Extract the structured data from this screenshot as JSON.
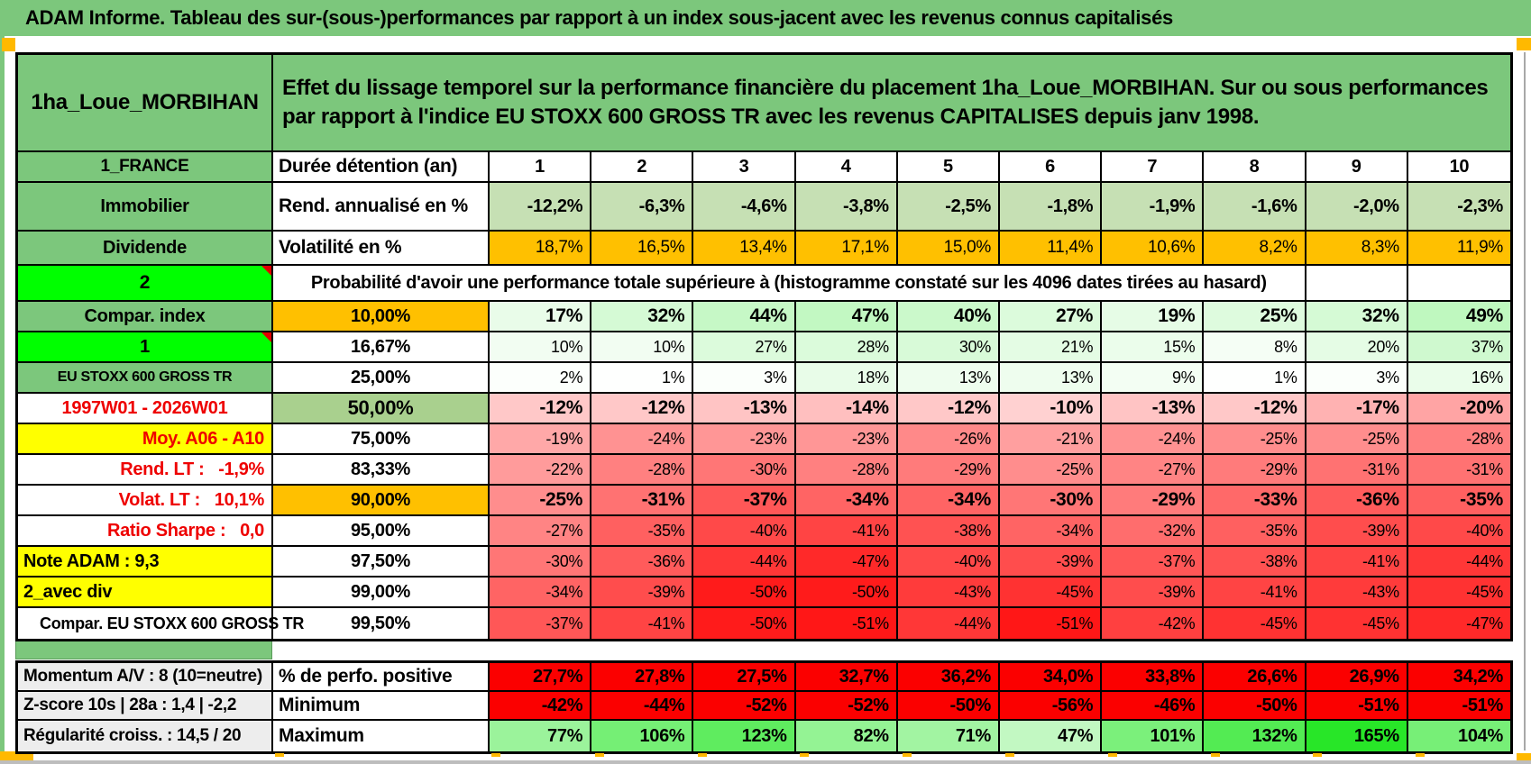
{
  "title": "ADAM Informe. Tableau des sur-(sous-)performances par rapport à un index sous-jacent avec les revenus connus capitalisés",
  "colors": {
    "page_green": "#7CC77C",
    "bright_green": "#00FF00",
    "orange": "#FFC000",
    "yellow": "#FFFF00",
    "sage_green": "#A9D08E",
    "rend_cell_green": "#C6E0B4",
    "red_text": "#EE0000",
    "full_red": "#FB0000",
    "gray_label": "#EDEDED"
  },
  "header": {
    "name": "1ha_Loue_MORBIHAN",
    "description": "Effet du lissage temporel sur la performance financière du placement 1ha_Loue_MORBIHAN. Sur ou sous performances par rapport à l'indice EU STOXX 600 GROSS TR avec les revenus CAPITALISES depuis janv 1998."
  },
  "table": {
    "duration_row": {
      "label": "1_FRANCE",
      "header": "Durée détention (an)",
      "values": [
        "1",
        "2",
        "3",
        "4",
        "5",
        "6",
        "7",
        "8",
        "9",
        "10"
      ]
    },
    "rend_row": {
      "label": "Immobilier",
      "header": "Rend. annualisé en %",
      "values": [
        "-12,2%",
        "-6,3%",
        "-4,6%",
        "-3,8%",
        "-2,5%",
        "-1,8%",
        "-1,9%",
        "-1,6%",
        "-2,0%",
        "-2,3%"
      ]
    },
    "volat_row": {
      "label": "Dividende",
      "header": "Volatilité en %",
      "values": [
        "18,7%",
        "16,5%",
        "13,4%",
        "17,1%",
        "15,0%",
        "11,4%",
        "10,6%",
        "8,2%",
        "8,3%",
        "11,9%"
      ]
    },
    "prob_header": {
      "label": "2",
      "text": "Probabilité d'avoir une performance totale supérieure à (histogramme constaté sur les 4096 dates tirées au hasard)"
    },
    "prob_rows": [
      {
        "label": "Compar. index",
        "label_bg": "green",
        "label_color": "black",
        "label_align": "center",
        "label_size": "normal",
        "marker": false,
        "threshold": "10,00%",
        "threshold_bg": "orange",
        "bold": true,
        "values": [
          "17%",
          "32%",
          "44%",
          "47%",
          "40%",
          "27%",
          "19%",
          "25%",
          "32%",
          "49%"
        ]
      },
      {
        "label": "1",
        "label_bg": "bright",
        "label_color": "black",
        "label_align": "center",
        "label_size": "normal",
        "marker": true,
        "threshold": "16,67%",
        "threshold_bg": "white",
        "bold": false,
        "values": [
          "10%",
          "10%",
          "27%",
          "28%",
          "30%",
          "21%",
          "15%",
          "8%",
          "20%",
          "37%"
        ]
      },
      {
        "label": "EU STOXX 600 GROSS TR",
        "label_bg": "green",
        "label_color": "black",
        "label_align": "center",
        "label_size": "small",
        "marker": false,
        "threshold": "25,00%",
        "threshold_bg": "white",
        "bold": false,
        "values": [
          "2%",
          "1%",
          "3%",
          "18%",
          "13%",
          "13%",
          "9%",
          "1%",
          "3%",
          "16%"
        ]
      },
      {
        "label": "1997W01 - 2026W01",
        "label_bg": "white",
        "label_color": "red",
        "label_align": "center",
        "label_size": "normal",
        "marker": false,
        "threshold": "50,00%",
        "threshold_bg": "sage",
        "bold": true,
        "values": [
          "-12%",
          "-12%",
          "-13%",
          "-14%",
          "-12%",
          "-10%",
          "-13%",
          "-12%",
          "-17%",
          "-20%"
        ]
      },
      {
        "label": "Moy. A06 - A10",
        "label_bg": "yellow",
        "label_color": "red",
        "label_align": "right",
        "label_size": "normal",
        "marker": false,
        "threshold": "75,00%",
        "threshold_bg": "white",
        "bold": false,
        "values": [
          "-19%",
          "-24%",
          "-23%",
          "-23%",
          "-26%",
          "-21%",
          "-24%",
          "-25%",
          "-25%",
          "-28%"
        ]
      },
      {
        "label": "Rend. LT :   -1,9%",
        "label_bg": "white",
        "label_color": "red",
        "label_align": "right",
        "label_size": "normal",
        "marker": false,
        "threshold": "83,33%",
        "threshold_bg": "white",
        "bold": false,
        "values": [
          "-22%",
          "-28%",
          "-30%",
          "-28%",
          "-29%",
          "-25%",
          "-27%",
          "-29%",
          "-31%",
          "-31%"
        ]
      },
      {
        "label": "Volat. LT :   10,1%",
        "label_bg": "white",
        "label_color": "red",
        "label_align": "right",
        "label_size": "normal",
        "marker": false,
        "threshold": "90,00%",
        "threshold_bg": "orange",
        "bold": true,
        "values": [
          "-25%",
          "-31%",
          "-37%",
          "-34%",
          "-34%",
          "-30%",
          "-29%",
          "-33%",
          "-36%",
          "-35%"
        ]
      },
      {
        "label": "Ratio Sharpe :   0,0",
        "label_bg": "white",
        "label_color": "red",
        "label_align": "right",
        "label_size": "normal",
        "marker": false,
        "threshold": "95,00%",
        "threshold_bg": "white",
        "bold": false,
        "values": [
          "-27%",
          "-35%",
          "-40%",
          "-41%",
          "-38%",
          "-34%",
          "-32%",
          "-35%",
          "-39%",
          "-40%"
        ]
      },
      {
        "label": "Note ADAM : 9,3",
        "label_bg": "yellow",
        "label_color": "black",
        "label_align": "left",
        "label_size": "normal",
        "marker": false,
        "threshold": "97,50%",
        "threshold_bg": "white",
        "bold": false,
        "values": [
          "-30%",
          "-36%",
          "-44%",
          "-47%",
          "-40%",
          "-39%",
          "-37%",
          "-38%",
          "-41%",
          "-44%"
        ]
      },
      {
        "label": "2_avec div",
        "label_bg": "yellow",
        "label_color": "black",
        "label_align": "left",
        "label_size": "normal",
        "marker": false,
        "threshold": "99,00%",
        "threshold_bg": "white",
        "bold": false,
        "values": [
          "-34%",
          "-39%",
          "-50%",
          "-50%",
          "-43%",
          "-45%",
          "-39%",
          "-41%",
          "-43%",
          "-45%"
        ]
      },
      {
        "label": "Compar. EU STOXX 600 GROSS TR",
        "label_bg": "white",
        "label_color": "black",
        "label_align": "indent",
        "label_size": "mid",
        "marker": false,
        "threshold": "99,50%",
        "threshold_bg": "white",
        "bold": false,
        "values": [
          "-37%",
          "-41%",
          "-50%",
          "-51%",
          "-44%",
          "-51%",
          "-42%",
          "-45%",
          "-45%",
          "-47%"
        ]
      }
    ]
  },
  "footer": {
    "rows": [
      {
        "label": "Momentum A/V : 8 (10=neutre)",
        "header": "% de perfo. positive",
        "fill": "red",
        "values": [
          "27,7%",
          "27,8%",
          "27,5%",
          "32,7%",
          "36,2%",
          "34,0%",
          "33,8%",
          "26,6%",
          "26,9%",
          "34,2%"
        ]
      },
      {
        "label": "Z-score 10s | 28a : 1,4 | -2,2",
        "header": "Minimum",
        "fill": "red",
        "values": [
          "-42%",
          "-44%",
          "-52%",
          "-52%",
          "-50%",
          "-56%",
          "-46%",
          "-50%",
          "-51%",
          "-51%"
        ]
      },
      {
        "label": "Régularité croiss. : 14,5 / 20",
        "header": "Maximum",
        "fill": "scale",
        "values": [
          "77%",
          "106%",
          "123%",
          "82%",
          "71%",
          "47%",
          "101%",
          "132%",
          "165%",
          "104%"
        ]
      }
    ]
  },
  "scale": {
    "positive_max": 165,
    "negative_min": -56
  }
}
